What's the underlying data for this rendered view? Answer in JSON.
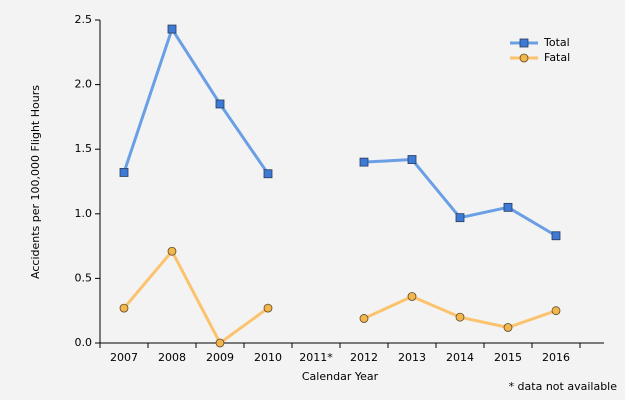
{
  "chart_data": {
    "type": "line",
    "y_label": "Accidents per 100,000 Flight Hours",
    "x_label": "Calendar Year",
    "annotation": "* data not available",
    "categories": [
      "2007",
      "2008",
      "2009",
      "2010",
      "2011*",
      "2012",
      "2013",
      "2014",
      "2015",
      "2016"
    ],
    "series": [
      {
        "name": "Total",
        "color": "#6a9fe6",
        "marker_color": "#3d7ad6",
        "marker": "square",
        "values": [
          1.32,
          2.43,
          1.85,
          1.31,
          null,
          1.4,
          1.42,
          0.97,
          1.05,
          0.83
        ]
      },
      {
        "name": "Fatal",
        "color": "#fbc36e",
        "marker_color": "#f2b64a",
        "marker": "circle",
        "values": [
          0.27,
          0.71,
          0.0,
          0.27,
          null,
          0.19,
          0.36,
          0.2,
          0.12,
          0.25
        ]
      }
    ],
    "ylim": [
      0,
      2.5
    ],
    "yticks": [
      {
        "value": 0,
        "label": "0.0"
      },
      0.5,
      {
        "value": 1,
        "label": "1.0"
      },
      1.5,
      {
        "value": 2,
        "label": "2.0"
      },
      2.5
    ],
    "grid": false,
    "legend": "top-right"
  }
}
